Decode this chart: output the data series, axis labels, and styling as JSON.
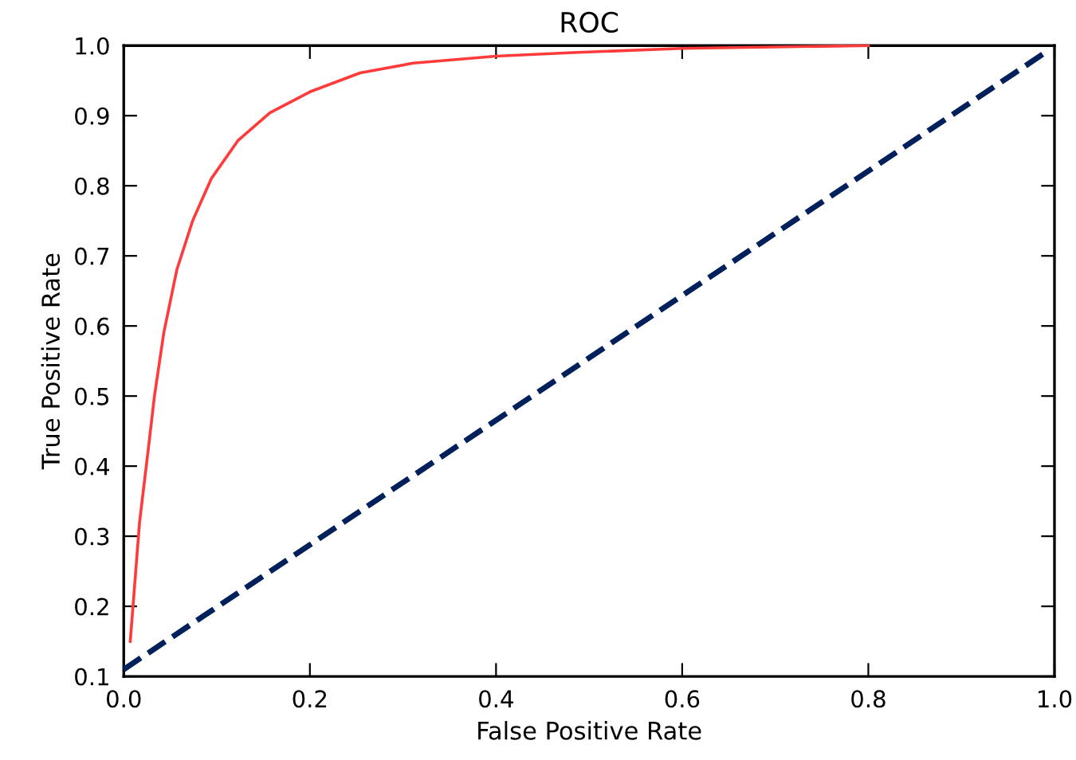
{
  "chart_data": {
    "type": "line",
    "title": "ROC",
    "xlabel": "False Positive Rate",
    "ylabel": "True Positive Rate",
    "xlim": [
      0.0,
      1.0
    ],
    "ylim": [
      0.1,
      1.0
    ],
    "xticks": [
      {
        "value": 0.0,
        "label": "0.0"
      },
      0.2,
      0.4,
      0.6,
      0.8,
      {
        "value": 1.0,
        "label": "1.0"
      }
    ],
    "yticks": [
      0.1,
      0.2,
      0.3,
      0.4,
      0.5,
      0.6,
      0.7,
      0.8,
      0.9,
      {
        "value": 1.0,
        "label": "1.0"
      }
    ],
    "grid": false,
    "legend": false,
    "marker": "none",
    "series": [
      {
        "color": "#ff3a3a",
        "line_style": "solid",
        "x": [
          0.007,
          0.017,
          0.026,
          0.033,
          0.043,
          0.057,
          0.074,
          0.094,
          0.123,
          0.157,
          0.2,
          0.254,
          0.311,
          0.4,
          0.483,
          0.6,
          0.8
        ],
        "values": [
          0.15,
          0.32,
          0.42,
          0.5,
          0.59,
          0.68,
          0.75,
          0.81,
          0.865,
          0.904,
          0.934,
          0.961,
          0.975,
          0.985,
          0.99,
          0.996,
          1.0
        ]
      },
      {
        "color": "#00205b",
        "line_style": "dashed",
        "x": [
          0.0,
          0.99
        ],
        "values": [
          0.11,
          0.99
        ]
      }
    ]
  }
}
